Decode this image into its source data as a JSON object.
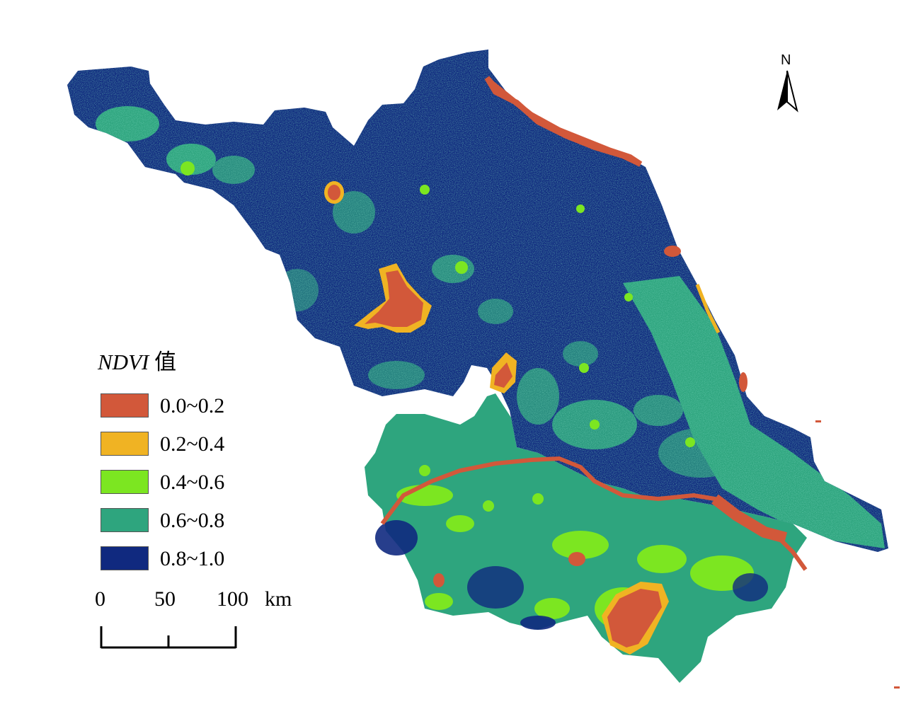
{
  "map": {
    "region_colors": {
      "base": "#2ea57e",
      "dense_vegetation": "#10297f",
      "low": "#d2583a",
      "low_mid": "#f0b323",
      "mid": "#7ce621",
      "river": "#d2583a",
      "background": "#ffffff"
    }
  },
  "north_arrow": {
    "label": "N"
  },
  "legend": {
    "title_italic": "NDVI",
    "title_suffix": "值",
    "items": [
      {
        "label": "0.0~0.2",
        "color": "#d2583a"
      },
      {
        "label": "0.2~0.4",
        "color": "#f0b323"
      },
      {
        "label": "0.4~0.6",
        "color": "#7ce621"
      },
      {
        "label": "0.6~0.8",
        "color": "#2ea57e"
      },
      {
        "label": "0.8~1.0",
        "color": "#10297f"
      }
    ]
  },
  "scale_bar": {
    "ticks": [
      "0",
      "50",
      "100"
    ],
    "unit": "km"
  }
}
